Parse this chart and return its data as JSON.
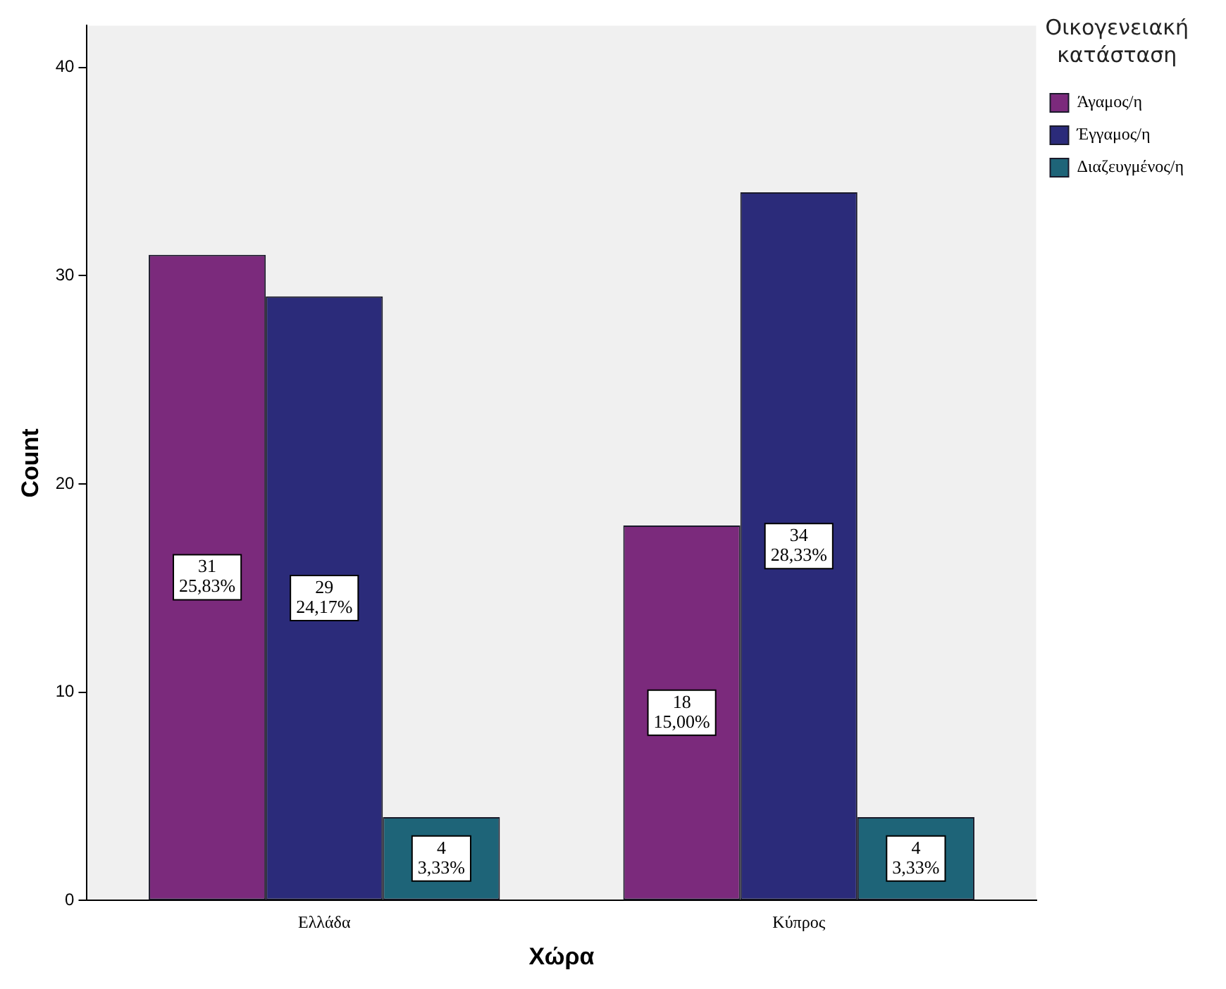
{
  "chart_data": {
    "type": "bar",
    "xlabel": "Χώρα",
    "ylabel": "Count",
    "legend_title": "Οικογενειακή κατάσταση",
    "legend": "right",
    "grid": false,
    "categories": [
      "Ελλάδα",
      "Κύπρος"
    ],
    "series": [
      {
        "name": "Άγαμος/η",
        "color": "#7b2a7c",
        "values": [
          31,
          18
        ],
        "value_labels": [
          "31\n25,83%",
          "18\n15,00%"
        ]
      },
      {
        "name": "Έγγαμος/η",
        "color": "#2b2b7a",
        "values": [
          29,
          34
        ],
        "value_labels": [
          "29\n24,17%",
          "34\n28,33%"
        ]
      },
      {
        "name": "Διαζευγμένος/η",
        "color": "#1e6478",
        "values": [
          4,
          4
        ],
        "value_labels": [
          "4\n3,33%",
          "4\n3,33%"
        ]
      }
    ],
    "ylim": [
      0,
      42
    ],
    "yticks": [
      0,
      10,
      20,
      30,
      40
    ]
  }
}
